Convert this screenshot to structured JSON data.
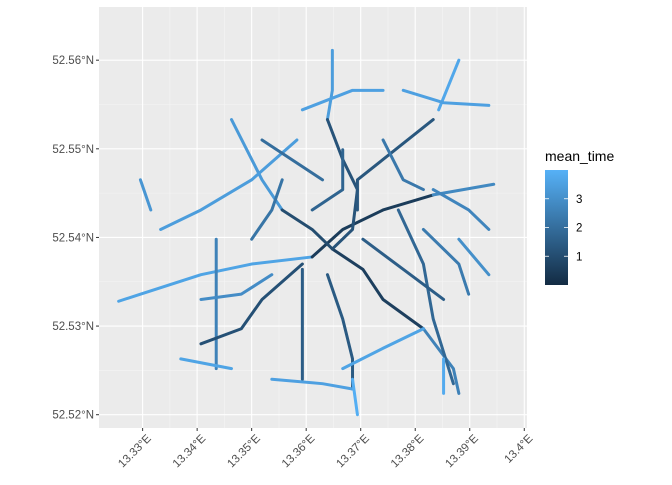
{
  "chart_data": {
    "type": "line",
    "title": "",
    "xlabel": "",
    "ylabel": "",
    "xlim": [
      13.322,
      13.4005
    ],
    "ylim": [
      52.5185,
      52.566
    ],
    "x_ticks": [
      13.33,
      13.34,
      13.35,
      13.36,
      13.37,
      13.38,
      13.39,
      13.4
    ],
    "x_tick_labels": [
      "13.33°E",
      "13.34°E",
      "13.35°E",
      "13.36°E",
      "13.37°E",
      "13.38°E",
      "13.39°E",
      "13.4°E"
    ],
    "y_ticks": [
      52.52,
      52.53,
      52.54,
      52.55,
      52.56
    ],
    "y_tick_labels": [
      "52.52°N",
      "52.53°N",
      "52.54°N",
      "52.55°N",
      "52.56°N"
    ],
    "grid": true,
    "background": "#ebebeb",
    "legend": {
      "title": "mean_time",
      "position": "right",
      "range": [
        0,
        4
      ],
      "breaks": [
        1,
        2,
        3
      ],
      "break_labels": [
        "1",
        "2",
        "3"
      ],
      "low_color": "#132b43",
      "high_color": "#56b1f7"
    },
    "series": [
      {
        "mean_time": 3.6,
        "points": [
          [
            13.3256,
            52.5328
          ],
          [
            13.3296,
            52.5336
          ],
          [
            13.3407,
            52.5358
          ],
          [
            13.35,
            52.537
          ],
          [
            13.3611,
            52.5378
          ]
        ]
      },
      {
        "mean_time": 0.5,
        "points": [
          [
            13.3611,
            52.5378
          ],
          [
            13.3667,
            52.5409
          ],
          [
            13.3741,
            52.5431
          ],
          [
            13.3833,
            52.5448
          ]
        ]
      },
      {
        "mean_time": 2.8,
        "points": [
          [
            13.3833,
            52.5448
          ],
          [
            13.3944,
            52.546
          ]
        ]
      },
      {
        "mean_time": 0.6,
        "points": [
          [
            13.3648,
            52.5387
          ],
          [
            13.3704,
            52.5364
          ],
          [
            13.3741,
            52.533
          ],
          [
            13.3815,
            52.5297
          ]
        ]
      },
      {
        "mean_time": 2.6,
        "points": [
          [
            13.3815,
            52.5297
          ],
          [
            13.387,
            52.5252
          ],
          [
            13.388,
            52.5224
          ]
        ]
      },
      {
        "mean_time": 3.4,
        "points": [
          [
            13.3648,
            52.5611
          ],
          [
            13.3648,
            52.5566
          ],
          [
            13.3639,
            52.5533
          ]
        ]
      },
      {
        "mean_time": 1.2,
        "points": [
          [
            13.3639,
            52.5533
          ],
          [
            13.3667,
            52.5488
          ],
          [
            13.3694,
            52.5454
          ],
          [
            13.3685,
            52.5409
          ],
          [
            13.3648,
            52.5387
          ]
        ]
      },
      {
        "mean_time": 2.6,
        "points": [
          [
            13.3435,
            52.5398
          ],
          [
            13.3435,
            52.533
          ],
          [
            13.3435,
            52.5252
          ]
        ]
      },
      {
        "mean_time": 1.1,
        "points": [
          [
            13.3593,
            52.537
          ],
          [
            13.3519,
            52.533
          ],
          [
            13.3481,
            52.5297
          ],
          [
            13.3407,
            52.528
          ]
        ]
      },
      {
        "mean_time": 1.5,
        "points": [
          [
            13.3593,
            52.5364
          ],
          [
            13.3593,
            52.5297
          ],
          [
            13.3593,
            52.524
          ]
        ]
      },
      {
        "mean_time": 1.4,
        "points": [
          [
            13.3639,
            52.5358
          ],
          [
            13.3667,
            52.5308
          ],
          [
            13.3685,
            52.5263
          ],
          [
            13.3685,
            52.5229
          ]
        ]
      },
      {
        "mean_time": 3.3,
        "points": [
          [
            13.3463,
            52.5533
          ],
          [
            13.3519,
            52.5465
          ],
          [
            13.3556,
            52.5431
          ]
        ]
      },
      {
        "mean_time": 1.0,
        "points": [
          [
            13.3556,
            52.5431
          ],
          [
            13.3611,
            52.5409
          ],
          [
            13.3648,
            52.5387
          ]
        ]
      },
      {
        "mean_time": 3.4,
        "points": [
          [
            13.3333,
            52.5409
          ],
          [
            13.3407,
            52.5431
          ],
          [
            13.35,
            52.5465
          ],
          [
            13.3583,
            52.551
          ]
        ]
      },
      {
        "mean_time": 3.7,
        "points": [
          [
            13.3843,
            52.5544
          ],
          [
            13.388,
            52.56
          ]
        ]
      },
      {
        "mean_time": 3.5,
        "points": [
          [
            13.3778,
            52.5566
          ],
          [
            13.3852,
            52.5552
          ],
          [
            13.3935,
            52.5549
          ]
        ]
      },
      {
        "mean_time": 3.6,
        "points": [
          [
            13.3667,
            52.5252
          ],
          [
            13.3741,
            52.5275
          ],
          [
            13.3815,
            52.5297
          ]
        ]
      },
      {
        "mean_time": 1.8,
        "points": [
          [
            13.3769,
            52.5431
          ],
          [
            13.3815,
            52.537
          ],
          [
            13.3833,
            52.5308
          ],
          [
            13.387,
            52.5235
          ]
        ]
      },
      {
        "mean_time": 3.5,
        "points": [
          [
            13.3537,
            52.524
          ],
          [
            13.363,
            52.5235
          ],
          [
            13.3685,
            52.5229
          ]
        ]
      },
      {
        "mean_time": 3.6,
        "points": [
          [
            13.337,
            52.5263
          ],
          [
            13.3463,
            52.5252
          ]
        ]
      },
      {
        "mean_time": 2.7,
        "points": [
          [
            13.3833,
            52.5454
          ],
          [
            13.3898,
            52.5431
          ],
          [
            13.3935,
            52.5409
          ]
        ]
      },
      {
        "mean_time": 1.3,
        "points": [
          [
            13.3694,
            52.5431
          ],
          [
            13.3694,
            52.5465
          ],
          [
            13.3741,
            52.5488
          ],
          [
            13.3833,
            52.5533
          ]
        ]
      },
      {
        "mean_time": 2.0,
        "points": [
          [
            13.3519,
            52.551
          ],
          [
            13.363,
            52.5465
          ]
        ]
      },
      {
        "mean_time": 1.5,
        "points": [
          [
            13.3704,
            52.5398
          ],
          [
            13.3778,
            52.5364
          ],
          [
            13.3852,
            52.533
          ]
        ]
      },
      {
        "mean_time": 3.8,
        "points": [
          [
            13.3852,
            52.5263
          ],
          [
            13.3852,
            52.5224
          ]
        ]
      },
      {
        "mean_time": 3.5,
        "points": [
          [
            13.3593,
            52.5544
          ],
          [
            13.3685,
            52.5566
          ],
          [
            13.3741,
            52.5566
          ]
        ]
      },
      {
        "mean_time": 2.2,
        "points": [
          [
            13.35,
            52.5398
          ],
          [
            13.3537,
            52.5431
          ],
          [
            13.3556,
            52.5465
          ]
        ]
      },
      {
        "mean_time": 2.9,
        "points": [
          [
            13.3407,
            52.533
          ],
          [
            13.3481,
            52.5336
          ],
          [
            13.3537,
            52.5358
          ]
        ]
      },
      {
        "mean_time": 2.4,
        "points": [
          [
            13.3815,
            52.5409
          ],
          [
            13.388,
            52.537
          ],
          [
            13.3898,
            52.5336
          ]
        ]
      },
      {
        "mean_time": 3.0,
        "points": [
          [
            13.388,
            52.5398
          ],
          [
            13.3935,
            52.5358
          ]
        ]
      },
      {
        "mean_time": 1.7,
        "points": [
          [
            13.3611,
            52.5431
          ],
          [
            13.3667,
            52.5454
          ],
          [
            13.3667,
            52.5499
          ]
        ]
      },
      {
        "mean_time": 3.2,
        "points": [
          [
            13.3296,
            52.5465
          ],
          [
            13.3315,
            52.5431
          ]
        ]
      },
      {
        "mean_time": 3.9,
        "points": [
          [
            13.3685,
            52.524
          ],
          [
            13.3694,
            52.52
          ]
        ]
      },
      {
        "mean_time": 2.3,
        "points": [
          [
            13.3741,
            52.551
          ],
          [
            13.3778,
            52.5465
          ],
          [
            13.3815,
            52.5454
          ]
        ]
      }
    ]
  }
}
